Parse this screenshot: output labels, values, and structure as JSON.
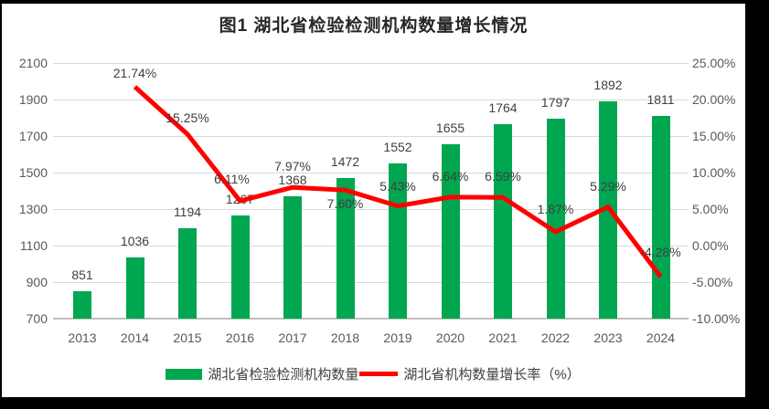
{
  "title": "图1 湖北省检验检测机构数量增长情况",
  "colors": {
    "bar": "#00A650",
    "line": "#FF0000",
    "axis_text": "#595959",
    "label_text": "#404040",
    "gridline": "#D9D9D9",
    "frame": "#000000",
    "background": "#FFFFFF"
  },
  "legend": [
    {
      "label": "湖北省检验检测机构数量",
      "swatch": "bar"
    },
    {
      "label": "湖北省机构数量增长率（%）",
      "swatch": "line"
    }
  ],
  "chart_data": {
    "type": "bar",
    "title": "图1 湖北省检验检测机构数量增长情况",
    "categories": [
      "2013",
      "2014",
      "2015",
      "2016",
      "2017",
      "2018",
      "2019",
      "2020",
      "2021",
      "2022",
      "2023",
      "2024"
    ],
    "series": [
      {
        "name": "湖北省检验检测机构数量",
        "type": "bar",
        "axis": "left",
        "color": "#00A650",
        "values": [
          851,
          1036,
          1194,
          1267,
          1368,
          1472,
          1552,
          1655,
          1764,
          1797,
          1892,
          1811
        ],
        "labels": [
          "851",
          "1036",
          "1194",
          "1267",
          "1368",
          "1472",
          "1552",
          "1655",
          "1764",
          "1797",
          "1892",
          "1811"
        ]
      },
      {
        "name": "湖北省机构数量增长率（%）",
        "type": "line",
        "axis": "right",
        "color": "#FF0000",
        "values": [
          null,
          21.74,
          15.25,
          6.11,
          7.97,
          7.6,
          5.43,
          6.64,
          6.59,
          1.87,
          5.29,
          -4.28
        ],
        "labels": [
          null,
          "21.74%",
          "15.25%",
          "6.11%",
          "7.97%",
          "7.60%",
          "5.43%",
          "6.64%",
          "6.59%",
          "1.87%",
          "5.29%",
          "-4.28%"
        ]
      }
    ],
    "left_axis": {
      "min": 700,
      "max": 2100,
      "step": 200,
      "tick_labels": [
        "700",
        "900",
        "1100",
        "1300",
        "1500",
        "1700",
        "1900",
        "2100"
      ]
    },
    "right_axis": {
      "min": -10,
      "max": 25,
      "step": 5,
      "tick_labels": [
        "-10.00%",
        "-5.00%",
        "0.00%",
        "5.00%",
        "10.00%",
        "15.00%",
        "20.00%",
        "25.00%"
      ]
    },
    "grid": true,
    "legend_position": "bottom"
  }
}
